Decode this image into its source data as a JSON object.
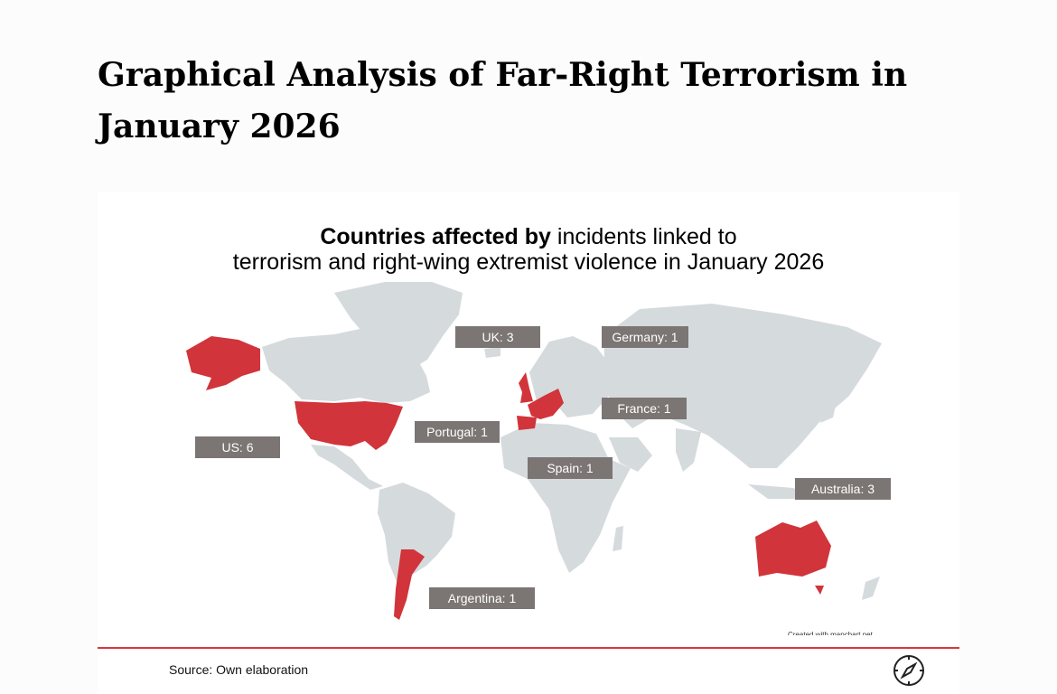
{
  "page_title": "Graphical Analysis of Far-Right Terrorism in January 2026",
  "map": {
    "title_bold": "Countries affected by",
    "title_rest_line1": " incidents linked to",
    "title_line2": "terrorism and right-wing extremist violence in January 2026",
    "highlight_color": "#d1343a",
    "land_color": "#d5dadd",
    "label_color": "#7b7573",
    "credit": "Created with mapchart.net"
  },
  "chart_data": {
    "type": "choropleth",
    "title": "Countries affected by incidents linked to terrorism and right-wing extremist violence in January 2026",
    "countries": [
      {
        "name": "UK",
        "label": "UK: 3",
        "value": 3
      },
      {
        "name": "Germany",
        "label": "Germany: 1",
        "value": 1
      },
      {
        "name": "France",
        "label": "France: 1",
        "value": 1
      },
      {
        "name": "Portugal",
        "label": "Portugal: 1",
        "value": 1
      },
      {
        "name": "Spain",
        "label": "Spain: 1",
        "value": 1
      },
      {
        "name": "US",
        "label": "US: 6",
        "value": 6
      },
      {
        "name": "Australia",
        "label": "Australia: 3",
        "value": 3
      },
      {
        "name": "Argentina",
        "label": "Argentina: 1",
        "value": 1
      }
    ]
  },
  "footer": {
    "source": "Source: Own elaboration",
    "logo": "compass-logo-icon"
  }
}
